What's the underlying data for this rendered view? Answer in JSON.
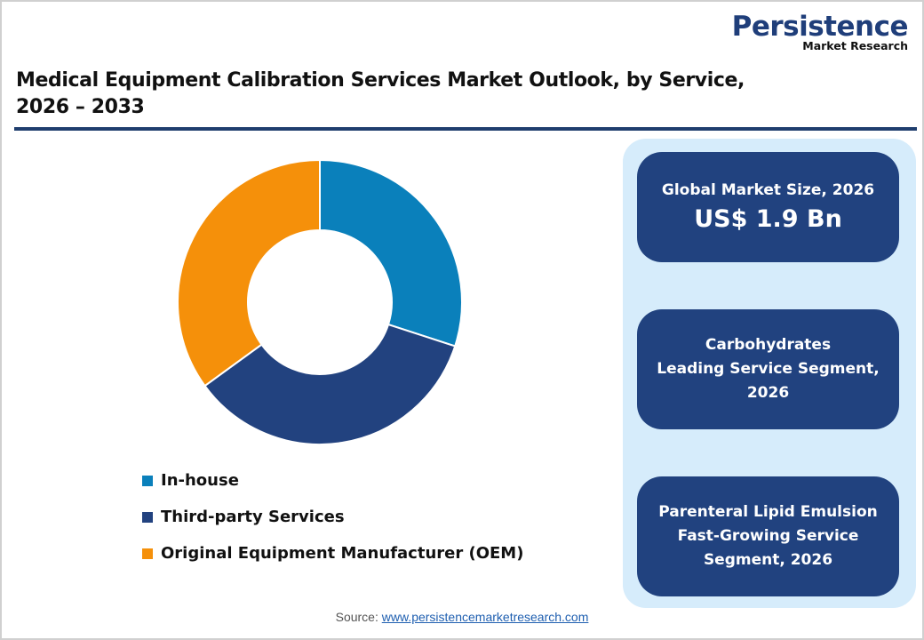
{
  "logo": {
    "brand": "Persistence",
    "sub": "Market Research"
  },
  "title": {
    "line1": "Medical Equipment Calibration Services Market Outlook, by Service,",
    "line2": "2026 – 2033"
  },
  "colors": {
    "in_house": "#0a80bb",
    "third_party": "#22427f",
    "oem": "#f5900a",
    "card_bg": "#21427f",
    "panel_bg": "#d6ecfb",
    "rule": "#1f3e6e"
  },
  "legend": [
    {
      "label": "In-house",
      "color": "#0a80bb"
    },
    {
      "label": "Third-party Services",
      "color": "#22427f"
    },
    {
      "label": "Original Equipment Manufacturer (OEM)",
      "color": "#f5900a"
    }
  ],
  "cards": [
    {
      "label": "Global Market Size, 2026",
      "value": "US$ 1.9 Bn"
    },
    {
      "lines": [
        "Carbohydrates",
        "Leading Service Segment,",
        "2026"
      ]
    },
    {
      "lines": [
        "Parenteral Lipid Emulsion",
        "Fast-Growing Service",
        "Segment, 2026"
      ]
    }
  ],
  "source": {
    "prefix": "Source: ",
    "link": "www.persistencemarketresearch.com"
  },
  "chart_data": {
    "type": "pie",
    "subtype": "donut",
    "title": "Medical Equipment Calibration Services Market Outlook, by Service, 2026 – 2033",
    "categories": [
      "In-house",
      "Third-party Services",
      "Original Equipment Manufacturer (OEM)"
    ],
    "values": [
      30,
      35,
      35
    ],
    "unit": "% share (estimated from slice angles, no data labels shown)",
    "colors": [
      "#0a80bb",
      "#22427f",
      "#f5900a"
    ],
    "start_angle": "12 o'clock, clockwise",
    "legend_position": "bottom-left"
  }
}
